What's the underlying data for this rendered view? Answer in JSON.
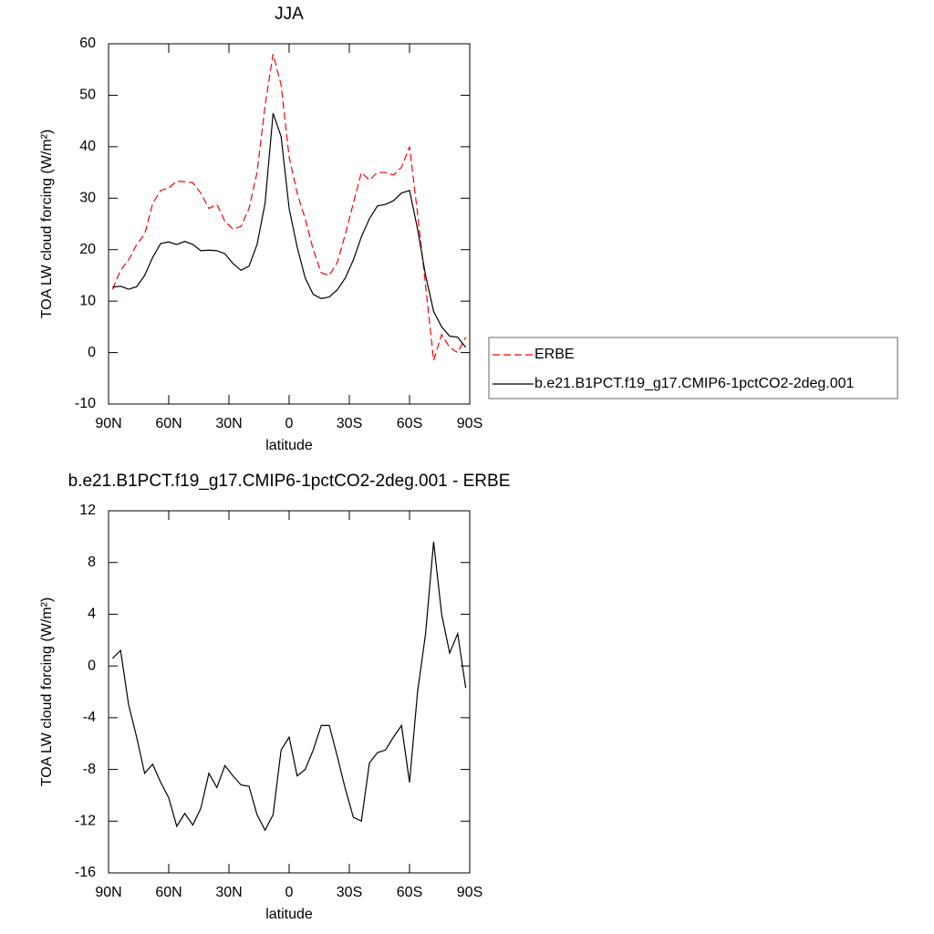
{
  "chart_data": [
    {
      "type": "line",
      "title": "JJA",
      "x_label": "latitude",
      "y_label": "TOA LW cloud forcing (W/m²)",
      "x": [
        88,
        84,
        80,
        76,
        72,
        68,
        64,
        60,
        56,
        52,
        48,
        44,
        40,
        36,
        32,
        28,
        24,
        20,
        16,
        12,
        8,
        4,
        0,
        -4,
        -8,
        -12,
        -16,
        -20,
        -24,
        -28,
        -32,
        -36,
        -40,
        -44,
        -48,
        -52,
        -56,
        -60,
        -64,
        -68,
        -72,
        -76,
        -80,
        -84,
        -88
      ],
      "series": [
        {
          "name": "ERBE",
          "color": "#ff0000",
          "dash": true,
          "values": [
            12.3,
            16,
            18,
            21,
            23,
            29,
            31.5,
            32,
            33.3,
            33.2,
            33,
            31,
            28,
            28.8,
            25.5,
            24,
            24.5,
            28,
            35,
            48,
            58,
            52,
            38,
            31,
            26,
            20,
            15.5,
            15,
            17.5,
            23,
            29,
            35,
            33.5,
            35,
            35,
            34.5,
            36,
            40,
            27,
            13,
            -1.5,
            3.5,
            1,
            0,
            3
          ]
        },
        {
          "name": "b.e21.B1PCT.f19_g17.CMIP6-1pctCO2-2deg.001",
          "color": "#000000",
          "dash": false,
          "values": [
            12.7,
            12.9,
            12.3,
            12.8,
            15,
            18.5,
            21.2,
            21.5,
            21,
            21.6,
            21,
            19.8,
            19.9,
            19.8,
            19.2,
            17.3,
            16,
            16.8,
            21,
            29,
            46.5,
            42,
            28,
            20.5,
            14.5,
            11.3,
            10.5,
            10.8,
            12.2,
            14.5,
            18,
            22.5,
            26,
            28.5,
            28.8,
            29.5,
            31,
            31.5,
            24,
            15,
            8,
            5,
            3.2,
            3,
            1
          ]
        }
      ],
      "xlim": [
        90,
        -90
      ],
      "xticks": [
        {
          "value": 90,
          "label": "90N"
        },
        {
          "value": 60,
          "label": "60N"
        },
        {
          "value": 30,
          "label": "30N"
        },
        0,
        {
          "value": -30,
          "label": "30S"
        },
        {
          "value": -60,
          "label": "60S"
        },
        {
          "value": -90,
          "label": "90S"
        }
      ],
      "ylim": [
        -10,
        60
      ],
      "yticks": [
        -10,
        0,
        10,
        20,
        30,
        40,
        50,
        60
      ],
      "legend": "right"
    },
    {
      "type": "line",
      "title": "b.e21.B1PCT.f19_g17.CMIP6-1pctCO2-2deg.001 - ERBE",
      "x_label": "latitude",
      "y_label": "TOA LW cloud forcing (W/m²)",
      "x": [
        88,
        84,
        80,
        76,
        72,
        68,
        64,
        60,
        56,
        52,
        48,
        44,
        40,
        36,
        32,
        28,
        24,
        20,
        16,
        12,
        8,
        4,
        0,
        -4,
        -8,
        -12,
        -16,
        -20,
        -24,
        -28,
        -32,
        -36,
        -40,
        -44,
        -48,
        -52,
        -56,
        -60,
        -64,
        -68,
        -72,
        -76,
        -80,
        -84,
        -88
      ],
      "series": [
        {
          "color": "#000000",
          "dash": false,
          "values": [
            0.6,
            1.2,
            -3,
            -5.5,
            -8.3,
            -7.6,
            -9,
            -10.2,
            -12.4,
            -11.4,
            -12.3,
            -11,
            -8.3,
            -9.4,
            -7.7,
            -8.5,
            -9.2,
            -9.3,
            -11.5,
            -12.7,
            -11.5,
            -6.5,
            -5.5,
            -8.5,
            -8,
            -6.5,
            -4.6,
            -4.6,
            -7,
            -9.5,
            -11.7,
            -12,
            -7.5,
            -6.7,
            -6.5,
            -5.5,
            -4.6,
            -9,
            -2,
            2.5,
            9.6,
            4,
            1,
            2.5,
            -1.7
          ]
        }
      ],
      "xlim": [
        90,
        -90
      ],
      "xticks": [
        {
          "value": 90,
          "label": "90N"
        },
        {
          "value": 60,
          "label": "60N"
        },
        {
          "value": 30,
          "label": "30N"
        },
        0,
        {
          "value": -30,
          "label": "30S"
        },
        {
          "value": -60,
          "label": "60S"
        },
        {
          "value": -90,
          "label": "90S"
        }
      ],
      "ylim": [
        -16,
        12
      ],
      "yticks": [
        -16,
        -12,
        -8,
        -4,
        0,
        4,
        8,
        12
      ]
    }
  ]
}
